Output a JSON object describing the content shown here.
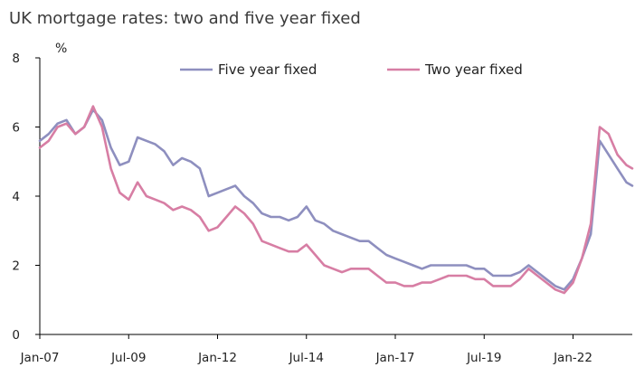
{
  "chart_data": {
    "type": "line",
    "title": "UK mortgage rates: two and five year fixed",
    "ylabel": "%",
    "xlabel": "",
    "ylim": [
      0,
      8
    ],
    "yticks": [
      "0",
      "2",
      "4",
      "6",
      "8"
    ],
    "xlim": [
      "2007-01",
      "2023-09"
    ],
    "xticks": [
      {
        "label": "Jan-07",
        "date": "2007-01"
      },
      {
        "label": "Jul-09",
        "date": "2009-07"
      },
      {
        "label": "Jan-12",
        "date": "2012-01"
      },
      {
        "label": "Jul-14",
        "date": "2014-07"
      },
      {
        "label": "Jan-17",
        "date": "2017-01"
      },
      {
        "label": "Jul-19",
        "date": "2019-07"
      },
      {
        "label": "Jan-22",
        "date": "2022-01"
      }
    ],
    "legend_position": "top",
    "grid": false,
    "series": [
      {
        "name": "Five year fixed",
        "color": "#8e8fbf",
        "points": [
          [
            "2007-01",
            5.6
          ],
          [
            "2007-04",
            5.8
          ],
          [
            "2007-07",
            6.1
          ],
          [
            "2007-10",
            6.2
          ],
          [
            "2008-01",
            5.8
          ],
          [
            "2008-04",
            6.0
          ],
          [
            "2008-07",
            6.5
          ],
          [
            "2008-10",
            6.2
          ],
          [
            "2009-01",
            5.4
          ],
          [
            "2009-04",
            4.9
          ],
          [
            "2009-07",
            5.0
          ],
          [
            "2009-10",
            5.7
          ],
          [
            "2010-01",
            5.6
          ],
          [
            "2010-04",
            5.5
          ],
          [
            "2010-07",
            5.3
          ],
          [
            "2010-10",
            4.9
          ],
          [
            "2011-01",
            5.1
          ],
          [
            "2011-04",
            5.0
          ],
          [
            "2011-07",
            4.8
          ],
          [
            "2011-10",
            4.0
          ],
          [
            "2012-01",
            4.1
          ],
          [
            "2012-04",
            4.2
          ],
          [
            "2012-07",
            4.3
          ],
          [
            "2012-10",
            4.0
          ],
          [
            "2013-01",
            3.8
          ],
          [
            "2013-04",
            3.5
          ],
          [
            "2013-07",
            3.4
          ],
          [
            "2013-10",
            3.4
          ],
          [
            "2014-01",
            3.3
          ],
          [
            "2014-04",
            3.4
          ],
          [
            "2014-07",
            3.7
          ],
          [
            "2014-10",
            3.3
          ],
          [
            "2015-01",
            3.2
          ],
          [
            "2015-04",
            3.0
          ],
          [
            "2015-07",
            2.9
          ],
          [
            "2015-10",
            2.8
          ],
          [
            "2016-01",
            2.7
          ],
          [
            "2016-04",
            2.7
          ],
          [
            "2016-07",
            2.5
          ],
          [
            "2016-10",
            2.3
          ],
          [
            "2017-01",
            2.2
          ],
          [
            "2017-04",
            2.1
          ],
          [
            "2017-07",
            2.0
          ],
          [
            "2017-10",
            1.9
          ],
          [
            "2018-01",
            2.0
          ],
          [
            "2018-04",
            2.0
          ],
          [
            "2018-07",
            2.0
          ],
          [
            "2018-10",
            2.0
          ],
          [
            "2019-01",
            2.0
          ],
          [
            "2019-04",
            1.9
          ],
          [
            "2019-07",
            1.9
          ],
          [
            "2019-10",
            1.7
          ],
          [
            "2020-01",
            1.7
          ],
          [
            "2020-04",
            1.7
          ],
          [
            "2020-07",
            1.8
          ],
          [
            "2020-10",
            2.0
          ],
          [
            "2021-01",
            1.8
          ],
          [
            "2021-04",
            1.6
          ],
          [
            "2021-07",
            1.4
          ],
          [
            "2021-10",
            1.3
          ],
          [
            "2022-01",
            1.6
          ],
          [
            "2022-04",
            2.2
          ],
          [
            "2022-07",
            2.9
          ],
          [
            "2022-10",
            5.6
          ],
          [
            "2023-01",
            5.2
          ],
          [
            "2023-04",
            4.8
          ],
          [
            "2023-07",
            4.4
          ],
          [
            "2023-09",
            4.3
          ]
        ]
      },
      {
        "name": "Two year fixed",
        "color": "#d77ea4",
        "points": [
          [
            "2007-01",
            5.4
          ],
          [
            "2007-04",
            5.6
          ],
          [
            "2007-07",
            6.0
          ],
          [
            "2007-10",
            6.1
          ],
          [
            "2008-01",
            5.8
          ],
          [
            "2008-04",
            6.0
          ],
          [
            "2008-07",
            6.6
          ],
          [
            "2008-10",
            6.0
          ],
          [
            "2009-01",
            4.8
          ],
          [
            "2009-04",
            4.1
          ],
          [
            "2009-07",
            3.9
          ],
          [
            "2009-10",
            4.4
          ],
          [
            "2010-01",
            4.0
          ],
          [
            "2010-04",
            3.9
          ],
          [
            "2010-07",
            3.8
          ],
          [
            "2010-10",
            3.6
          ],
          [
            "2011-01",
            3.7
          ],
          [
            "2011-04",
            3.6
          ],
          [
            "2011-07",
            3.4
          ],
          [
            "2011-10",
            3.0
          ],
          [
            "2012-01",
            3.1
          ],
          [
            "2012-04",
            3.4
          ],
          [
            "2012-07",
            3.7
          ],
          [
            "2012-10",
            3.5
          ],
          [
            "2013-01",
            3.2
          ],
          [
            "2013-04",
            2.7
          ],
          [
            "2013-07",
            2.6
          ],
          [
            "2013-10",
            2.5
          ],
          [
            "2014-01",
            2.4
          ],
          [
            "2014-04",
            2.4
          ],
          [
            "2014-07",
            2.6
          ],
          [
            "2014-10",
            2.3
          ],
          [
            "2015-01",
            2.0
          ],
          [
            "2015-04",
            1.9
          ],
          [
            "2015-07",
            1.8
          ],
          [
            "2015-10",
            1.9
          ],
          [
            "2016-01",
            1.9
          ],
          [
            "2016-04",
            1.9
          ],
          [
            "2016-07",
            1.7
          ],
          [
            "2016-10",
            1.5
          ],
          [
            "2017-01",
            1.5
          ],
          [
            "2017-04",
            1.4
          ],
          [
            "2017-07",
            1.4
          ],
          [
            "2017-10",
            1.5
          ],
          [
            "2018-01",
            1.5
          ],
          [
            "2018-04",
            1.6
          ],
          [
            "2018-07",
            1.7
          ],
          [
            "2018-10",
            1.7
          ],
          [
            "2019-01",
            1.7
          ],
          [
            "2019-04",
            1.6
          ],
          [
            "2019-07",
            1.6
          ],
          [
            "2019-10",
            1.4
          ],
          [
            "2020-01",
            1.4
          ],
          [
            "2020-04",
            1.4
          ],
          [
            "2020-07",
            1.6
          ],
          [
            "2020-10",
            1.9
          ],
          [
            "2021-01",
            1.7
          ],
          [
            "2021-04",
            1.5
          ],
          [
            "2021-07",
            1.3
          ],
          [
            "2021-10",
            1.2
          ],
          [
            "2022-01",
            1.5
          ],
          [
            "2022-04",
            2.2
          ],
          [
            "2022-07",
            3.2
          ],
          [
            "2022-10",
            6.0
          ],
          [
            "2023-01",
            5.8
          ],
          [
            "2023-04",
            5.2
          ],
          [
            "2023-07",
            4.9
          ],
          [
            "2023-09",
            4.8
          ]
        ]
      }
    ]
  }
}
